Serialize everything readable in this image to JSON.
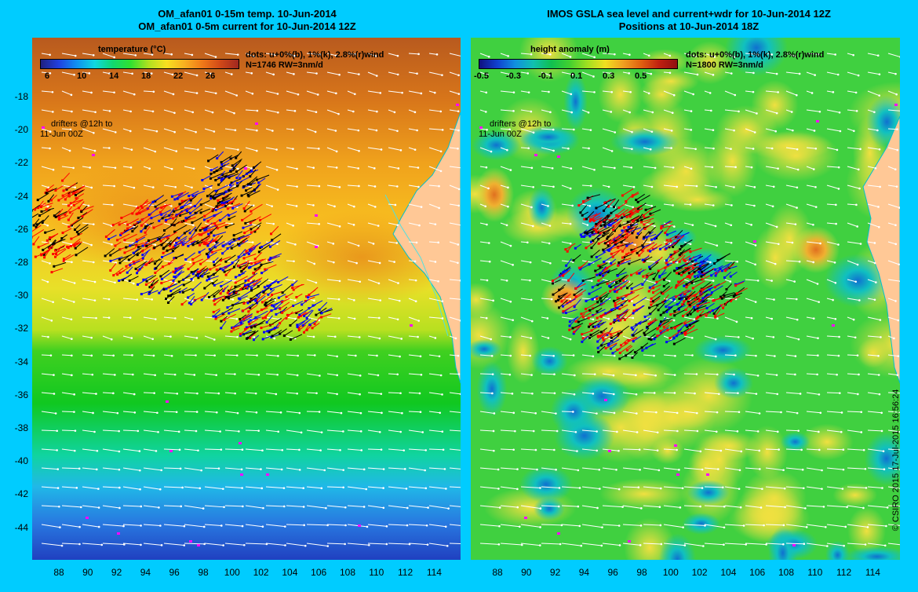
{
  "left_panel": {
    "title_line1": "OM_afan01 0-15m temp. 10-Jun-2014",
    "title_line2": "OM_afan01 0-5m current for 10-Jun-2014 12Z",
    "colorbar_title": "temperature (°C)",
    "colorbar_ticks": [
      "6",
      "10",
      "14",
      "18",
      "22",
      "26"
    ],
    "dots_line1": "dots: u+0%(b), 1%(k), 2.8%(r)wind",
    "dots_line2": "N=1746 RW=3nm/d",
    "drifters_line1": "drifters @12h to",
    "drifters_line2": "11-Jun 00Z"
  },
  "right_panel": {
    "title_line1": "IMOS GSLA sea level and current+wdr for 10-Jun-2014 12Z",
    "title_line2": "Positions at 10-Jun-2014 18Z",
    "colorbar_title": "height anomaly (m)",
    "colorbar_ticks": [
      "-0.5",
      "-0.3",
      "-0.1",
      "0.1",
      "0.3",
      "0.5"
    ],
    "dots_line1": "dots: u+0%(b), 1%(k), 2.8%(r)wind",
    "dots_line2": "N=1800 RW=3nm/d",
    "drifters_line1": "drifters @12h to",
    "drifters_line2": "11-Jun 00Z"
  },
  "y_axis_labels": [
    "-18",
    "-20",
    "-22",
    "-24",
    "-26",
    "-28",
    "-30",
    "-32",
    "-34",
    "-36",
    "-38",
    "-40",
    "-42",
    "-44"
  ],
  "x_axis_labels": [
    "88",
    "90",
    "92",
    "94",
    "96",
    "98",
    "100",
    "102",
    "104",
    "106",
    "108",
    "110",
    "112",
    "114"
  ],
  "credit": "© CSIRO 2015   17-Jul-2015 16:56:24",
  "colors": {
    "background": "#00ccff",
    "land": "#ffc896",
    "arrows": "#ffffff",
    "dot_blue": "#0000ff",
    "dot_black": "#000000",
    "dot_red": "#ff0000",
    "drifter_magenta": "#ff00ff"
  }
}
